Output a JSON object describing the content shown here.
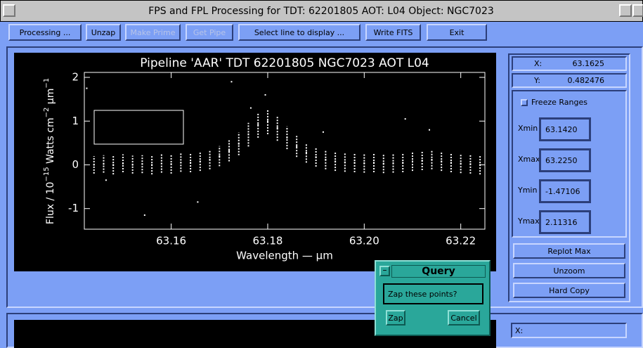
{
  "window": {
    "title": "FPS and FPL Processing for TDT:  62201805  AOT:  L04  Object:  NGC7023"
  },
  "toolbar": {
    "buttons": [
      "Processing ...",
      "Unzap",
      "Make Prime",
      "Get Pipe",
      "Select line to display ...",
      "Write FITS",
      "Exit"
    ]
  },
  "chart_data": {
    "type": "scatter",
    "title": "Pipeline 'AAR' TDT 62201805 NGC7023   AOT L04",
    "x_label": "Wavelength — μm",
    "y_label_parts": [
      "Flux / 10",
      "−15",
      " Watts cm",
      "−2",
      " μm",
      "−1"
    ],
    "xlim": [
      63.142,
      63.225
    ],
    "ylim": [
      -1.47106,
      2.11316
    ],
    "xticks": [
      63.16,
      63.18,
      {
        "value": 63.2,
        "label": "63.20"
      },
      63.22
    ],
    "yticks": [
      2,
      1,
      0,
      -1
    ],
    "x": [
      63.144,
      63.146,
      63.148,
      63.15,
      63.152,
      63.154,
      63.156,
      63.158,
      63.16,
      63.162,
      63.164,
      63.166,
      63.168,
      63.17,
      63.172,
      63.174,
      63.176,
      63.178,
      63.18,
      63.182,
      63.184,
      63.186,
      63.188,
      63.19,
      63.192,
      63.194,
      63.196,
      63.198,
      63.2,
      63.202,
      63.204,
      63.206,
      63.208,
      63.21,
      63.212,
      63.214,
      63.216,
      63.218,
      63.22,
      63.222,
      63.224
    ],
    "y": [
      0,
      0.02,
      0,
      0.03,
      0,
      0.02,
      0,
      0.03,
      0.02,
      0.05,
      0.05,
      0.08,
      0.12,
      0.2,
      0.32,
      0.48,
      0.7,
      0.92,
      1,
      0.85,
      0.62,
      0.42,
      0.28,
      0.18,
      0.12,
      0.08,
      0.06,
      0.05,
      0.04,
      0.05,
      0.03,
      0.04,
      0.05,
      0.08,
      0.1,
      0.12,
      0.08,
      0.05,
      0.03,
      0.02,
      0
    ],
    "low": [
      -0.2,
      -0.18,
      -0.22,
      -0.17,
      -0.2,
      -0.19,
      -0.22,
      -0.18,
      -0.2,
      -0.16,
      -0.17,
      -0.14,
      -0.1,
      -0.03,
      0.08,
      0.22,
      0.42,
      0.62,
      0.7,
      0.55,
      0.36,
      0.18,
      0.05,
      -0.04,
      -0.1,
      -0.14,
      -0.16,
      -0.17,
      -0.18,
      -0.17,
      -0.19,
      -0.18,
      -0.17,
      -0.14,
      -0.12,
      -0.1,
      -0.14,
      -0.17,
      -0.19,
      -0.2,
      -0.22
    ],
    "high": [
      0.2,
      0.22,
      0.2,
      0.24,
      0.21,
      0.22,
      0.2,
      0.24,
      0.23,
      0.26,
      0.27,
      0.3,
      0.34,
      0.43,
      0.56,
      0.74,
      0.96,
      1.18,
      1.25,
      1.12,
      0.88,
      0.66,
      0.5,
      0.4,
      0.34,
      0.3,
      0.28,
      0.27,
      0.26,
      0.27,
      0.25,
      0.26,
      0.27,
      0.3,
      0.32,
      0.34,
      0.3,
      0.27,
      0.25,
      0.24,
      0.22
    ],
    "outliers_x": [
      63.1425,
      63.1545,
      63.1655,
      63.1725,
      63.1765,
      63.1795,
      63.2085,
      63.2135,
      63.1465,
      63.1915
    ],
    "outliers_y": [
      1.75,
      -1.15,
      -0.85,
      1.9,
      1.3,
      1.6,
      1.05,
      0.8,
      -0.35,
      0.75
    ],
    "color": "#ffffff"
  },
  "side_panel": {
    "x_label": "X:",
    "x_value": "63.1625",
    "y_label": "Y:",
    "y_value": "0.482476",
    "freeze": "Freeze Ranges",
    "fields": [
      {
        "label": "Xmin",
        "value": "63.1420"
      },
      {
        "label": "Xmax",
        "value": "63.2250"
      },
      {
        "label": "Ymin",
        "value": "-1.47106"
      },
      {
        "label": "Ymax",
        "value": "2.11316"
      }
    ],
    "buttons": [
      "Replot Max",
      "Unzoom",
      "Hard Copy"
    ]
  },
  "query": {
    "title": "Query",
    "prompt": "Zap these points?",
    "buttons": [
      "Zap",
      "Cancel"
    ]
  },
  "lower_panel": {
    "x_label": "X:"
  }
}
